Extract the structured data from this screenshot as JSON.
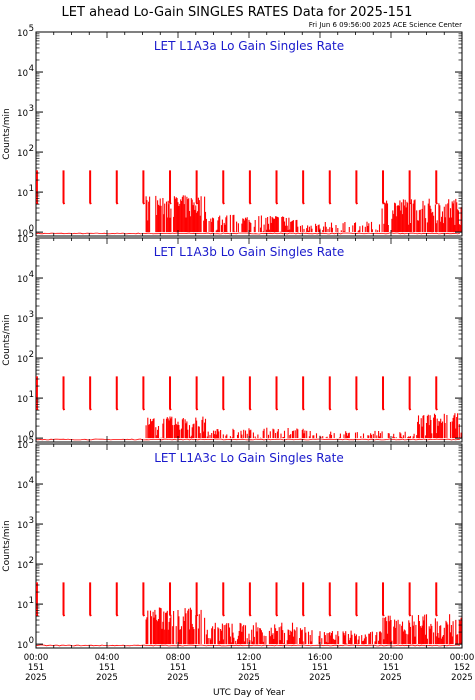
{
  "title": "LET ahead Lo-Gain SINGLES RATES Data for 2025-151",
  "timestamp": "Fri Jun  6 09:56:00 2025 ACE Science Center",
  "colors": {
    "data": "#ff0000",
    "panel_title": "#1a1acc",
    "axes": "#000000"
  },
  "chart_data": [
    {
      "type": "line",
      "title": "LET L1A3a Lo Gain Singles Rate",
      "ylabel": "Counts/min",
      "xlabel": "UTC Day of Year",
      "yscale": "log",
      "ylim": [
        0.8,
        100000
      ],
      "xlim": [
        0,
        24
      ],
      "y_ticks": [
        {
          "v": 1,
          "label": "10",
          "exp": "0"
        },
        {
          "v": 10,
          "label": "10",
          "exp": "1"
        },
        {
          "v": 100,
          "label": "10",
          "exp": "2"
        },
        {
          "v": 1000,
          "label": "10",
          "exp": "3"
        },
        {
          "v": 10000,
          "label": "10",
          "exp": "4"
        },
        {
          "v": 100000,
          "label": "10",
          "exp": "5"
        }
      ],
      "calibration_hours": [
        0.05,
        1.55,
        3.05,
        4.55,
        6.05,
        7.55,
        9.05,
        10.55,
        12.05,
        13.55,
        15.05,
        16.55,
        18.05,
        19.55,
        21.05,
        22.55
      ],
      "calibration_peak": 35,
      "activity_windows": [
        [
          6.2,
          9.6,
          6
        ],
        [
          9.6,
          15.2,
          2
        ],
        [
          15.2,
          19.5,
          1.3
        ],
        [
          19.5,
          24,
          5
        ]
      ]
    },
    {
      "type": "line",
      "title": "LET L1A3b Lo Gain Singles Rate",
      "ylabel": "Counts/min",
      "xlabel": "UTC Day of Year",
      "yscale": "log",
      "ylim": [
        0.8,
        100000
      ],
      "xlim": [
        0,
        24
      ],
      "y_ticks": [
        {
          "v": 1,
          "label": "10",
          "exp": "0"
        },
        {
          "v": 10,
          "label": "10",
          "exp": "1"
        },
        {
          "v": 100,
          "label": "10",
          "exp": "2"
        },
        {
          "v": 1000,
          "label": "10",
          "exp": "3"
        },
        {
          "v": 10000,
          "label": "10",
          "exp": "4"
        },
        {
          "v": 100000,
          "label": "10",
          "exp": "5"
        }
      ],
      "calibration_hours": [
        0.05,
        1.55,
        3.05,
        4.55,
        6.05,
        7.55,
        9.05,
        10.55,
        12.05,
        13.55,
        15.05,
        16.55,
        18.05,
        19.55,
        21.05,
        22.55
      ],
      "calibration_peak": 35,
      "activity_windows": [
        [
          6.2,
          9.6,
          2.5
        ],
        [
          9.6,
          15.2,
          1.3
        ],
        [
          15.2,
          21.5,
          1.1
        ],
        [
          21.5,
          24,
          3
        ]
      ]
    },
    {
      "type": "line",
      "title": "LET L1A3c Lo Gain Singles Rate",
      "ylabel": "Counts/min",
      "xlabel": "UTC Day of Year",
      "yscale": "log",
      "ylim": [
        0.8,
        100000
      ],
      "xlim": [
        0,
        24
      ],
      "y_ticks": [
        {
          "v": 1,
          "label": "10",
          "exp": "0"
        },
        {
          "v": 10,
          "label": "10",
          "exp": "1"
        },
        {
          "v": 100,
          "label": "10",
          "exp": "2"
        },
        {
          "v": 1000,
          "label": "10",
          "exp": "3"
        },
        {
          "v": 10000,
          "label": "10",
          "exp": "4"
        },
        {
          "v": 100000,
          "label": "10",
          "exp": "5"
        }
      ],
      "calibration_hours": [
        0.05,
        1.55,
        3.05,
        4.55,
        6.05,
        7.55,
        9.05,
        10.55,
        12.05,
        13.55,
        15.05,
        16.55,
        18.05,
        19.55,
        21.05,
        22.55
      ],
      "calibration_peak": 35,
      "activity_windows": [
        [
          6.2,
          9.6,
          6
        ],
        [
          9.6,
          15.2,
          2.5
        ],
        [
          15.2,
          19.5,
          1.6
        ],
        [
          19.5,
          24,
          4
        ]
      ]
    }
  ],
  "x_ticks": [
    {
      "hour": 0,
      "time": "00:00",
      "doy": "151",
      "year": "2025"
    },
    {
      "hour": 4,
      "time": "04:00",
      "doy": "151",
      "year": "2025"
    },
    {
      "hour": 8,
      "time": "08:00",
      "doy": "151",
      "year": "2025"
    },
    {
      "hour": 12,
      "time": "12:00",
      "doy": "151",
      "year": "2025"
    },
    {
      "hour": 16,
      "time": "16:00",
      "doy": "151",
      "year": "2025"
    },
    {
      "hour": 20,
      "time": "20:00",
      "doy": "151",
      "year": "2025"
    },
    {
      "hour": 24,
      "time": "00:00",
      "doy": "152",
      "year": "2025"
    }
  ],
  "xlabel": "UTC Day of Year"
}
